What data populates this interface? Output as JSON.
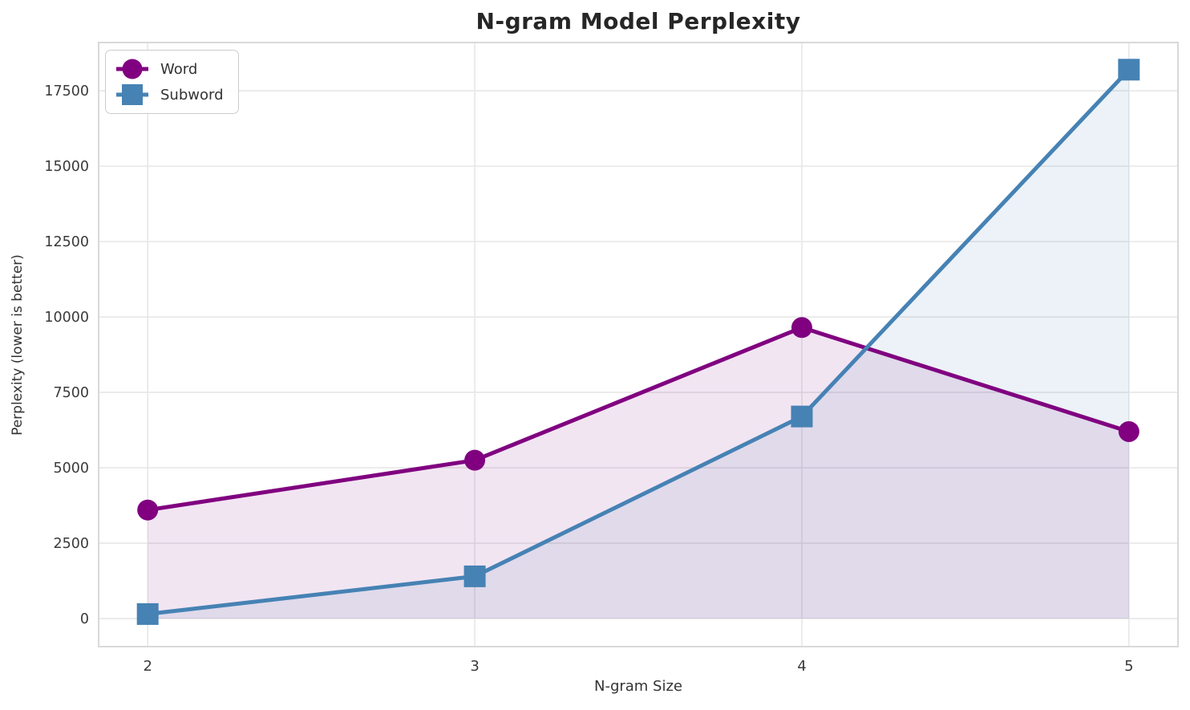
{
  "chart_data": {
    "type": "line",
    "title": "N-gram Model Perplexity",
    "xlabel": "N-gram Size",
    "ylabel": "Perplexity (lower is better)",
    "x": [
      2,
      3,
      4,
      5
    ],
    "x_tick_labels": [
      "2",
      "3",
      "4",
      "5"
    ],
    "y_ticks": [
      0,
      2500,
      5000,
      7500,
      10000,
      12500,
      15000,
      17500
    ],
    "y_tick_labels": [
      "0",
      "2500",
      "5000",
      "7500",
      "10000",
      "12500",
      "15000",
      "17500"
    ],
    "xlim": [
      1.85,
      5.15
    ],
    "ylim": [
      -930,
      19100
    ],
    "grid": true,
    "legend_position": "upper left",
    "fill_to_zero": true,
    "fill_alpha": 0.1,
    "series": [
      {
        "name": "Word",
        "marker": "circle",
        "color": "#800080",
        "values": [
          3600,
          5250,
          9650,
          6200
        ]
      },
      {
        "name": "Subword",
        "marker": "square",
        "color": "#4682B4",
        "values": [
          150,
          1400,
          6700,
          18200
        ]
      }
    ]
  },
  "colors": {
    "background": "#ffffff",
    "grid": "#e7e7e7",
    "spine": "#d9d9d9",
    "tick_text": "#3a3a3a",
    "title_text": "#262626"
  }
}
